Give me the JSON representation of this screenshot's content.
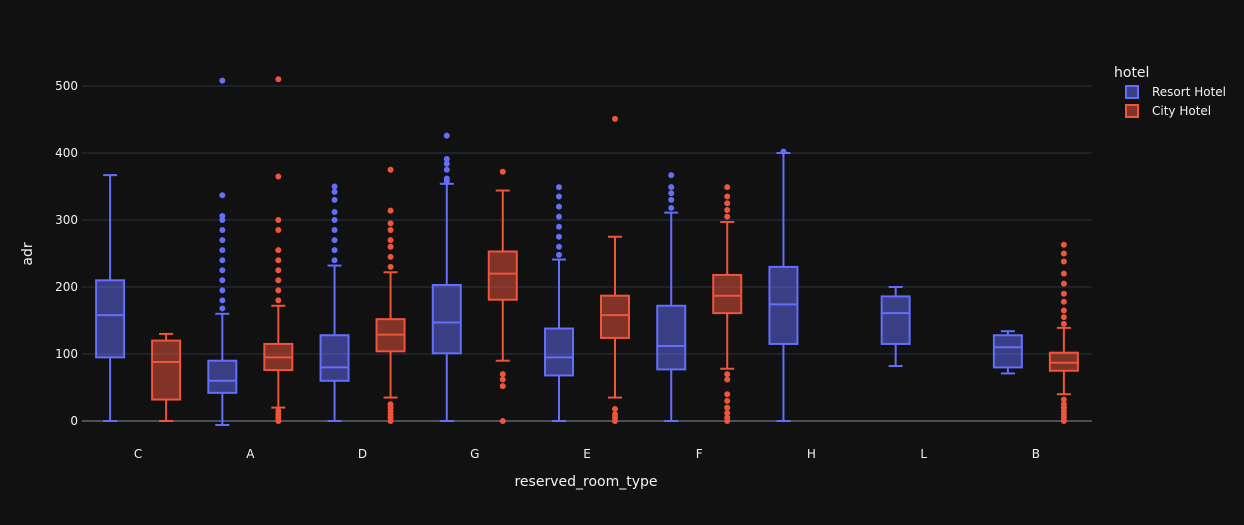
{
  "chart_data": {
    "type": "box",
    "xlabel": "reserved_room_type",
    "ylabel": "adr",
    "categories": [
      "C",
      "A",
      "D",
      "G",
      "E",
      "F",
      "H",
      "L",
      "B"
    ],
    "ylim": [
      -15,
      530
    ],
    "yticks": [
      0,
      100,
      200,
      300,
      400,
      500
    ],
    "grid": true,
    "legend": {
      "title": "hotel",
      "placement": "top-right"
    },
    "series": [
      {
        "name": "Resort Hotel",
        "color": "#636efa",
        "boxes": {
          "C": {
            "q1": 95,
            "median": 158,
            "q3": 210,
            "lower": 0,
            "upper": 367,
            "outliers": []
          },
          "A": {
            "q1": 42,
            "median": 60,
            "q3": 90,
            "lower": -6,
            "upper": 160,
            "outliers": [
              168,
              180,
              195,
              210,
              225,
              240,
              255,
              270,
              285,
              300,
              306,
              337,
              508
            ]
          },
          "D": {
            "q1": 60,
            "median": 80,
            "q3": 128,
            "lower": 0,
            "upper": 232,
            "outliers": [
              240,
              255,
              270,
              285,
              300,
              312,
              330,
              342,
              350
            ]
          },
          "G": {
            "q1": 101,
            "median": 147,
            "q3": 203,
            "lower": 0,
            "upper": 354,
            "outliers": [
              358,
              362,
              375,
              384,
              391,
              426
            ]
          },
          "E": {
            "q1": 68,
            "median": 95,
            "q3": 138,
            "lower": 0,
            "upper": 241,
            "outliers": [
              248,
              260,
              275,
              290,
              305,
              320,
              335,
              349
            ]
          },
          "F": {
            "q1": 77,
            "median": 112,
            "q3": 172,
            "lower": 0,
            "upper": 311,
            "outliers": [
              318,
              330,
              340,
              349,
              367
            ]
          },
          "H": {
            "q1": 115,
            "median": 174,
            "q3": 230,
            "lower": 0,
            "upper": 400,
            "outliers": [
              402
            ]
          },
          "L": {
            "q1": 115,
            "median": 161,
            "q3": 186,
            "lower": 82,
            "upper": 200,
            "outliers": []
          },
          "B": {
            "q1": 80,
            "median": 110,
            "q3": 128,
            "lower": 71,
            "upper": 134,
            "outliers": []
          }
        }
      },
      {
        "name": "City Hotel",
        "color": "#ef553b",
        "boxes": {
          "C": {
            "q1": 32,
            "median": 88,
            "q3": 120,
            "lower": 0,
            "upper": 130,
            "outliers": []
          },
          "A": {
            "q1": 76,
            "median": 95,
            "q3": 115,
            "lower": 20,
            "upper": 172,
            "outliers": [
              0,
              5,
              10,
              15,
              180,
              195,
              210,
              225,
              240,
              255,
              285,
              300,
              365,
              510
            ]
          },
          "D": {
            "q1": 104,
            "median": 129,
            "q3": 152,
            "lower": 35,
            "upper": 222,
            "outliers": [
              0,
              5,
              10,
              15,
              20,
              25,
              230,
              245,
              260,
              270,
              285,
              295,
              314,
              375
            ]
          },
          "G": {
            "q1": 181,
            "median": 220,
            "q3": 253,
            "lower": 90,
            "upper": 344,
            "outliers": [
              0,
              52,
              62,
              70,
              372
            ]
          },
          "E": {
            "q1": 124,
            "median": 158,
            "q3": 187,
            "lower": 35,
            "upper": 275,
            "outliers": [
              0,
              5,
              10,
              18,
              451
            ]
          },
          "F": {
            "q1": 161,
            "median": 187,
            "q3": 218,
            "lower": 78,
            "upper": 297,
            "outliers": [
              0,
              5,
              12,
              20,
              30,
              40,
              62,
              70,
              305,
              315,
              325,
              335,
              349
            ]
          },
          "H": null,
          "L": null,
          "B": {
            "q1": 75,
            "median": 87,
            "q3": 102,
            "lower": 40,
            "upper": 139,
            "outliers": [
              0,
              5,
              10,
              15,
              20,
              25,
              32,
              145,
              155,
              165,
              178,
              190,
              205,
              220,
              238,
              250,
              263
            ]
          }
        }
      }
    ]
  }
}
